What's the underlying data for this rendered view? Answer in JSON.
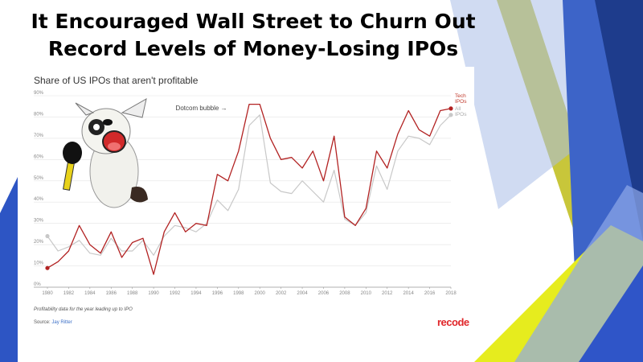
{
  "slide": {
    "title_line1": "It Encouraged Wall Street to Churn Out",
    "title_line2": "Record Levels of Money-Losing IPOs"
  },
  "chart_data": {
    "type": "line",
    "title": "Share of US IPOs that aren't profitable",
    "x": [
      1980,
      1981,
      1982,
      1983,
      1984,
      1985,
      1986,
      1987,
      1988,
      1989,
      1990,
      1991,
      1992,
      1993,
      1994,
      1995,
      1996,
      1997,
      1998,
      1999,
      2000,
      2001,
      2002,
      2003,
      2004,
      2005,
      2006,
      2007,
      2008,
      2009,
      2010,
      2011,
      2012,
      2013,
      2014,
      2015,
      2016,
      2017,
      2018
    ],
    "series": [
      {
        "name": "Tech IPOs",
        "color": "#b22222",
        "values": [
          9,
          12,
          17,
          29,
          20,
          16,
          26,
          14,
          21,
          23,
          6,
          26,
          35,
          26,
          30,
          29,
          53,
          50,
          64,
          86,
          86,
          70,
          60,
          61,
          56,
          64,
          50,
          71,
          33,
          29,
          37,
          64,
          56,
          72,
          83,
          74,
          71,
          83,
          84
        ]
      },
      {
        "name": "All IPOs",
        "color": "#c8c8c8",
        "values": [
          24,
          17,
          19,
          22,
          16,
          15,
          23,
          17,
          17,
          22,
          15,
          24,
          29,
          28,
          26,
          30,
          41,
          36,
          46,
          76,
          81,
          49,
          45,
          44,
          50,
          45,
          40,
          55,
          32,
          29,
          35,
          57,
          46,
          64,
          71,
          70,
          67,
          76,
          81
        ]
      }
    ],
    "legend": [
      {
        "lines": [
          "Tech",
          "IPOs"
        ],
        "color": "#c0392b"
      },
      {
        "lines": [
          "All",
          "IPOs"
        ],
        "color": "#aaaaaa"
      }
    ],
    "xticks": [
      "1980",
      "1982",
      "1984",
      "1986",
      "1988",
      "1990",
      "1992",
      "1994",
      "1996",
      "1998",
      "2000",
      "2002",
      "2004",
      "2006",
      "2008",
      "2010",
      "2012",
      "2014",
      "2016",
      "2018"
    ],
    "yticks": [
      "0%",
      "10%",
      "20%",
      "30%",
      "40%",
      "50%",
      "60%",
      "70%",
      "80%",
      "90%"
    ],
    "ylim": [
      0,
      90
    ],
    "xlim": [
      1980,
      2018
    ],
    "grid": true,
    "annotation": {
      "text": "Dotcom bubble →",
      "x": 1997,
      "y": 84
    }
  },
  "footnote": "Profitability data for the year leading up to IPO",
  "source_label": "Source:",
  "source_name": "Jay Ritter",
  "brand": "recode"
}
